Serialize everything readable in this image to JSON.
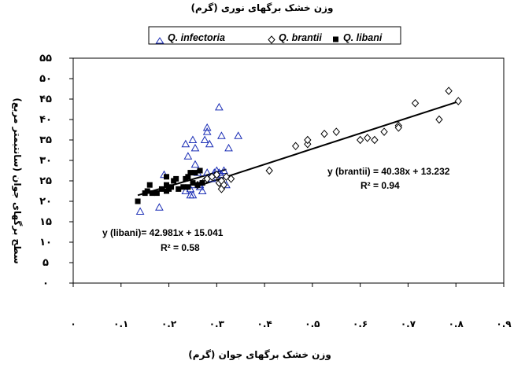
{
  "chart_data": {
    "type": "scatter",
    "title": "وزن خشک برگهای نوری (گرم)",
    "xlabel": "وزن خشک برگهای جوان (گرم)",
    "ylabel": "سطح برگهای جوان (سانتیمتر مربع)",
    "xlim": [
      0,
      0.9
    ],
    "ylim": [
      0,
      55
    ],
    "xticks": [
      0,
      0.1,
      0.2,
      0.3,
      0.4,
      0.5,
      0.6,
      0.7,
      0.8,
      0.9
    ],
    "xtick_labels": [
      "۰",
      "۰.۱",
      "۰.۲",
      "۰.۳",
      "۰.۴",
      "۰.۵",
      "۰.۶",
      "۰.۷",
      "۰.۸",
      "۰.۹"
    ],
    "yticks": [
      0,
      5,
      10,
      15,
      20,
      25,
      30,
      35,
      40,
      45,
      50,
      55
    ],
    "ytick_labels": [
      "۰",
      "۵",
      "۱۰",
      "۱۵",
      "۲۰",
      "۲۵",
      "۳۰",
      "۳۵",
      "۴۰",
      "۴۵",
      "۵۰",
      "۵۵"
    ],
    "grid": false,
    "legend_position": "top",
    "legend": [
      {
        "label": "Q. infectoria",
        "marker": "triangle-open"
      },
      {
        "label": "Q. brantii",
        "marker": "diamond-open"
      },
      {
        "label": "Q. libani",
        "marker": "square-filled"
      }
    ],
    "series": [
      {
        "name": "Q. infectoria",
        "marker": "triangle-open",
        "points": [
          [
            0.14,
            17.5
          ],
          [
            0.18,
            18.5
          ],
          [
            0.19,
            26.5
          ],
          [
            0.235,
            22.5
          ],
          [
            0.235,
            34
          ],
          [
            0.24,
            31
          ],
          [
            0.245,
            21.5
          ],
          [
            0.245,
            23
          ],
          [
            0.25,
            21.5
          ],
          [
            0.25,
            24
          ],
          [
            0.25,
            35
          ],
          [
            0.255,
            29
          ],
          [
            0.255,
            33
          ],
          [
            0.26,
            27
          ],
          [
            0.265,
            23.5
          ],
          [
            0.265,
            24
          ],
          [
            0.27,
            22.5
          ],
          [
            0.275,
            35
          ],
          [
            0.28,
            27
          ],
          [
            0.28,
            37
          ],
          [
            0.28,
            38
          ],
          [
            0.285,
            34
          ],
          [
            0.29,
            25.5
          ],
          [
            0.295,
            27
          ],
          [
            0.3,
            26.5
          ],
          [
            0.3,
            27.5
          ],
          [
            0.305,
            27
          ],
          [
            0.305,
            43
          ],
          [
            0.31,
            36
          ],
          [
            0.31,
            26.5
          ],
          [
            0.315,
            27.5
          ],
          [
            0.32,
            24
          ],
          [
            0.325,
            33
          ],
          [
            0.345,
            36
          ]
        ]
      },
      {
        "name": "Q. brantii",
        "marker": "diamond-open",
        "points": [
          [
            0.26,
            24
          ],
          [
            0.275,
            25
          ],
          [
            0.28,
            25.5
          ],
          [
            0.29,
            26
          ],
          [
            0.3,
            26.5
          ],
          [
            0.305,
            24.5
          ],
          [
            0.31,
            23
          ],
          [
            0.31,
            25
          ],
          [
            0.315,
            24
          ],
          [
            0.32,
            26
          ],
          [
            0.33,
            25.5
          ],
          [
            0.41,
            27.5
          ],
          [
            0.465,
            33.5
          ],
          [
            0.49,
            34
          ],
          [
            0.49,
            35
          ],
          [
            0.525,
            36.5
          ],
          [
            0.55,
            37
          ],
          [
            0.6,
            35
          ],
          [
            0.615,
            35.5
          ],
          [
            0.63,
            35
          ],
          [
            0.65,
            37
          ],
          [
            0.68,
            38.5
          ],
          [
            0.68,
            38
          ],
          [
            0.715,
            44
          ],
          [
            0.765,
            40
          ],
          [
            0.785,
            47
          ],
          [
            0.805,
            44.5
          ]
        ]
      },
      {
        "name": "Q. libani",
        "marker": "square-filled",
        "points": [
          [
            0.135,
            20
          ],
          [
            0.15,
            22
          ],
          [
            0.155,
            22.5
          ],
          [
            0.16,
            24
          ],
          [
            0.165,
            22
          ],
          [
            0.175,
            22
          ],
          [
            0.185,
            23
          ],
          [
            0.195,
            22.5
          ],
          [
            0.195,
            26
          ],
          [
            0.195,
            24
          ],
          [
            0.2,
            23
          ],
          [
            0.205,
            23.5
          ],
          [
            0.21,
            25
          ],
          [
            0.215,
            25.5
          ],
          [
            0.22,
            23
          ],
          [
            0.23,
            23.5
          ],
          [
            0.235,
            25.5
          ],
          [
            0.24,
            23.5
          ],
          [
            0.24,
            26
          ],
          [
            0.245,
            27
          ],
          [
            0.25,
            24.5
          ],
          [
            0.255,
            27
          ],
          [
            0.26,
            24
          ],
          [
            0.265,
            27.5
          ],
          [
            0.27,
            24.5
          ]
        ]
      }
    ],
    "trendlines": [
      {
        "series": "Q. libani",
        "x": [
          0.135,
          0.32
        ]
      },
      {
        "series": "Q. brantii",
        "x": [
          0.27,
          0.81
        ]
      }
    ],
    "annotations": [
      {
        "text": "y (brantii) = 40.38x + 13.232",
        "series": "Q. brantii"
      },
      {
        "text": "R² = 0.94",
        "series": "Q. brantii"
      },
      {
        "text": "y (libani)= 42.981x + 15.041",
        "series": "Q. libani"
      },
      {
        "text": "R² = 0.58",
        "series": "Q. libani"
      }
    ]
  },
  "styles": {
    "background": "#ffffff",
    "infectoria_color": "#1a2db5",
    "brantii_color": "#000000",
    "libani_color": "#000000",
    "trendline_color": "#000000"
  }
}
